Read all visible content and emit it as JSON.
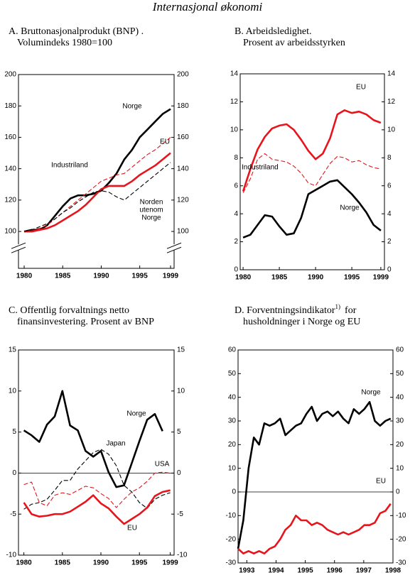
{
  "title": "Internasjonal økonomi",
  "chart_data": [
    {
      "type": "line",
      "title": "A. Bruttonasjonalprodukt (BNP) .",
      "subtitle": "Volumindeks 1980=100",
      "x": [
        1980,
        1981,
        1982,
        1983,
        1984,
        1985,
        1986,
        1987,
        1988,
        1989,
        1990,
        1991,
        1992,
        1993,
        1994,
        1995,
        1996,
        1997,
        1998,
        1999
      ],
      "xlim": [
        1979.26,
        1999.46
      ],
      "xticks": [
        1980,
        1985,
        1990,
        1995,
        1999
      ],
      "ylim": [
        76.5,
        200
      ],
      "yticks": [
        100,
        120,
        140,
        160,
        180,
        200
      ],
      "axis_break": true,
      "series": [
        {
          "name": "Norge",
          "color": "#000000",
          "dash": false,
          "values": [
            100,
            101,
            101,
            104,
            110,
            116,
            121,
            123,
            123,
            124,
            126,
            131,
            137,
            146,
            152,
            160,
            165,
            170,
            175,
            178
          ]
        },
        {
          "name": "EU",
          "color": "#e8141b",
          "dash": false,
          "values": [
            100,
            100,
            101,
            102,
            104,
            107,
            110,
            113,
            117,
            122,
            127,
            129,
            129,
            129,
            132,
            136,
            139,
            142,
            146,
            150
          ]
        },
        {
          "name": "Industriland",
          "color": "#e8141b",
          "dash": true,
          "values": [
            100,
            101,
            102,
            104,
            108,
            112,
            116,
            120,
            124,
            128,
            132,
            134,
            136,
            137,
            141,
            145,
            149,
            152,
            156,
            160
          ]
        },
        {
          "name": "Norden utenom Norge",
          "color": "#000000",
          "dash": true,
          "values": [
            100,
            101,
            103,
            105,
            108,
            112,
            115,
            119,
            122,
            125,
            126,
            125,
            122,
            120,
            124,
            128,
            132,
            136,
            140,
            144
          ]
        }
      ]
    },
    {
      "type": "line",
      "title": "B. Arbeidsledighet.",
      "subtitle": "Prosent av arbeidsstyrken",
      "x": [
        1980,
        1981,
        1982,
        1983,
        1984,
        1985,
        1986,
        1987,
        1988,
        1989,
        1990,
        1991,
        1992,
        1993,
        1994,
        1995,
        1996,
        1997,
        1998,
        1999
      ],
      "xlim": [
        1979.6,
        1999.5
      ],
      "xticks": [
        1980,
        1985,
        1990,
        1995,
        1999
      ],
      "ylim": [
        0,
        14
      ],
      "yticks": [
        0,
        2,
        4,
        6,
        8,
        10,
        12,
        14
      ],
      "series": [
        {
          "name": "EU",
          "color": "#e8141b",
          "dash": false,
          "values": [
            5.6,
            7.2,
            8.6,
            9.5,
            10.1,
            10.3,
            10.4,
            10.0,
            9.3,
            8.5,
            7.9,
            8.3,
            9.4,
            11.1,
            11.4,
            11.2,
            11.3,
            11.1,
            10.7,
            10.5
          ]
        },
        {
          "name": "Industriland",
          "color": "#e8141b",
          "dash": true,
          "values": [
            5.5,
            6.5,
            7.9,
            8.3,
            7.9,
            7.8,
            7.7,
            7.4,
            6.9,
            6.2,
            6.0,
            6.8,
            7.6,
            8.1,
            8.0,
            7.7,
            7.8,
            7.5,
            7.3,
            7.2
          ]
        },
        {
          "name": "Norge",
          "color": "#000000",
          "dash": false,
          "values": [
            2.3,
            2.5,
            3.2,
            3.9,
            3.8,
            3.1,
            2.5,
            2.6,
            3.7,
            5.4,
            5.7,
            6.0,
            6.3,
            6.4,
            5.9,
            5.4,
            4.8,
            4.1,
            3.2,
            2.8
          ]
        }
      ]
    },
    {
      "type": "line",
      "title": "C. Offentlig forvaltnings netto",
      "subtitle": "finansinvestering. Prosent av BNP",
      "x": [
        1980,
        1981,
        1982,
        1983,
        1984,
        1985,
        1986,
        1987,
        1988,
        1989,
        1990,
        1991,
        1992,
        1993,
        1994,
        1995,
        1996,
        1997,
        1998,
        1999
      ],
      "xlim": [
        1979.3,
        1999.5
      ],
      "xticks": [
        1980,
        1985,
        1990,
        1995,
        1999
      ],
      "ylim": [
        -10,
        15
      ],
      "yticks": [
        -10,
        -5,
        0,
        5,
        10,
        15
      ],
      "zero_line": true,
      "series": [
        {
          "name": "Norge",
          "color": "#000000",
          "dash": false,
          "values": [
            5.2,
            4.6,
            3.8,
            5.9,
            6.9,
            10.0,
            5.8,
            5.2,
            2.7,
            2.0,
            2.7,
            0.1,
            -1.7,
            -1.5,
            1.2,
            3.9,
            6.5,
            7.2,
            5.1,
            null
          ]
        },
        {
          "name": "Japan",
          "color": "#000000",
          "dash": true,
          "values": [
            -4.4,
            -3.8,
            -3.6,
            -3.2,
            -2.1,
            -0.9,
            -0.9,
            0.5,
            1.5,
            2.5,
            2.9,
            2.3,
            0.9,
            -1.5,
            -2.3,
            -3.6,
            -4.3,
            -3.2,
            -2.7,
            -2.4
          ]
        },
        {
          "name": "USA",
          "color": "#e8141b",
          "dash": true,
          "values": [
            -1.4,
            -1.1,
            -3.6,
            -4.0,
            -2.7,
            -2.4,
            -2.6,
            -2.1,
            -1.6,
            -1.8,
            -2.5,
            -3.1,
            -4.2,
            -3.2,
            -2.3,
            -1.8,
            -1.0,
            0.0,
            0.1,
            0.0
          ]
        },
        {
          "name": "EU",
          "color": "#e8141b",
          "dash": false,
          "values": [
            -3.6,
            -5.0,
            -5.3,
            -5.2,
            -5.0,
            -5.0,
            -4.7,
            -4.1,
            -3.5,
            -2.7,
            -3.7,
            -4.3,
            -5.3,
            -6.2,
            -5.6,
            -5.0,
            -4.2,
            -2.8,
            -2.3,
            -2.1
          ]
        }
      ]
    },
    {
      "type": "line",
      "title": "D. Forventningsindikator",
      "title_sup": "1)",
      "title_end": "for",
      "subtitle": "husholdninger i  Norge og EU",
      "x": [
        1992.7,
        1992.88,
        1993.06,
        1993.24,
        1993.42,
        1993.6,
        1993.78,
        1993.96,
        1994.14,
        1994.32,
        1994.5,
        1994.68,
        1994.86,
        1995.04,
        1995.22,
        1995.4,
        1995.58,
        1995.76,
        1995.94,
        1996.12,
        1996.3,
        1996.48,
        1996.66,
        1996.84,
        1997.02,
        1997.2,
        1997.38,
        1997.56,
        1997.74,
        1997.92
      ],
      "xlim": [
        1992.7,
        1998.0
      ],
      "xticks": [
        1993,
        1994,
        1995,
        1996,
        1997,
        1998
      ],
      "ylim": [
        -30,
        60
      ],
      "yticks": [
        -30,
        -20,
        -10,
        0,
        10,
        20,
        30,
        40,
        50,
        60
      ],
      "zero_line": true,
      "series": [
        {
          "name": "Norge",
          "color": "#000000",
          "dash": false,
          "values": [
            -24,
            -12,
            10,
            23,
            20,
            29,
            28,
            29,
            31,
            24,
            26,
            28,
            29,
            33,
            36,
            30,
            33,
            34,
            32,
            34,
            31,
            29,
            35,
            33,
            35,
            38,
            30,
            28,
            30,
            31
          ]
        },
        {
          "name": "EU",
          "color": "#e8141b",
          "dash": false,
          "values": [
            -24,
            -26,
            -25,
            -26,
            -25,
            -26,
            -24,
            -23,
            -20,
            -16,
            -14,
            -10,
            -12,
            -12,
            -14,
            -13,
            -14,
            -16,
            -17,
            -18,
            -17,
            -18,
            -17,
            -16,
            -14,
            -14,
            -13,
            -9,
            -8,
            -5
          ]
        }
      ]
    }
  ]
}
